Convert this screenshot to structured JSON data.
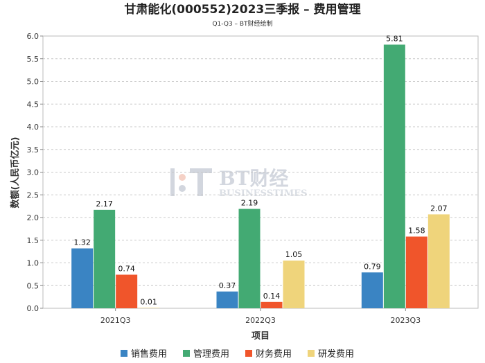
{
  "chart_data": {
    "type": "bar",
    "title": "甘肃能化(000552)2023三季报 – 费用管理",
    "subtitle": "Q1-Q3 – BT财经绘制",
    "xlabel": "项目",
    "ylabel": "数额(人民币亿元)",
    "ylim": [
      0,
      6.0
    ],
    "yticks": [
      "0.0",
      "0.5",
      "1.0",
      "1.5",
      "2.0",
      "2.5",
      "3.0",
      "3.5",
      "4.0",
      "4.5",
      "5.0",
      "5.5",
      "6.0"
    ],
    "grid": true,
    "legend_position": "bottom",
    "categories": [
      "2021Q3",
      "2022Q3",
      "2023Q3"
    ],
    "series": [
      {
        "name": "销售费用",
        "color": "#3a84c3",
        "values": [
          1.32,
          0.37,
          0.79
        ],
        "labels": [
          "1.32",
          "0.37",
          "0.79"
        ]
      },
      {
        "name": "管理费用",
        "color": "#43aa73",
        "values": [
          2.17,
          2.19,
          5.81
        ],
        "labels": [
          "2.17",
          "2.19",
          "5.81"
        ]
      },
      {
        "name": "财务费用",
        "color": "#f0552b",
        "values": [
          0.74,
          0.14,
          1.58
        ],
        "labels": [
          "0.74",
          "0.14",
          "1.58"
        ]
      },
      {
        "name": "研发费用",
        "color": "#efd47b",
        "values": [
          0.01,
          1.05,
          2.07
        ],
        "labels": [
          "0.01",
          "1.05",
          "2.07"
        ]
      }
    ],
    "watermark": {
      "main": "BT财经",
      "sub": "BUSINESSTIMES"
    }
  }
}
